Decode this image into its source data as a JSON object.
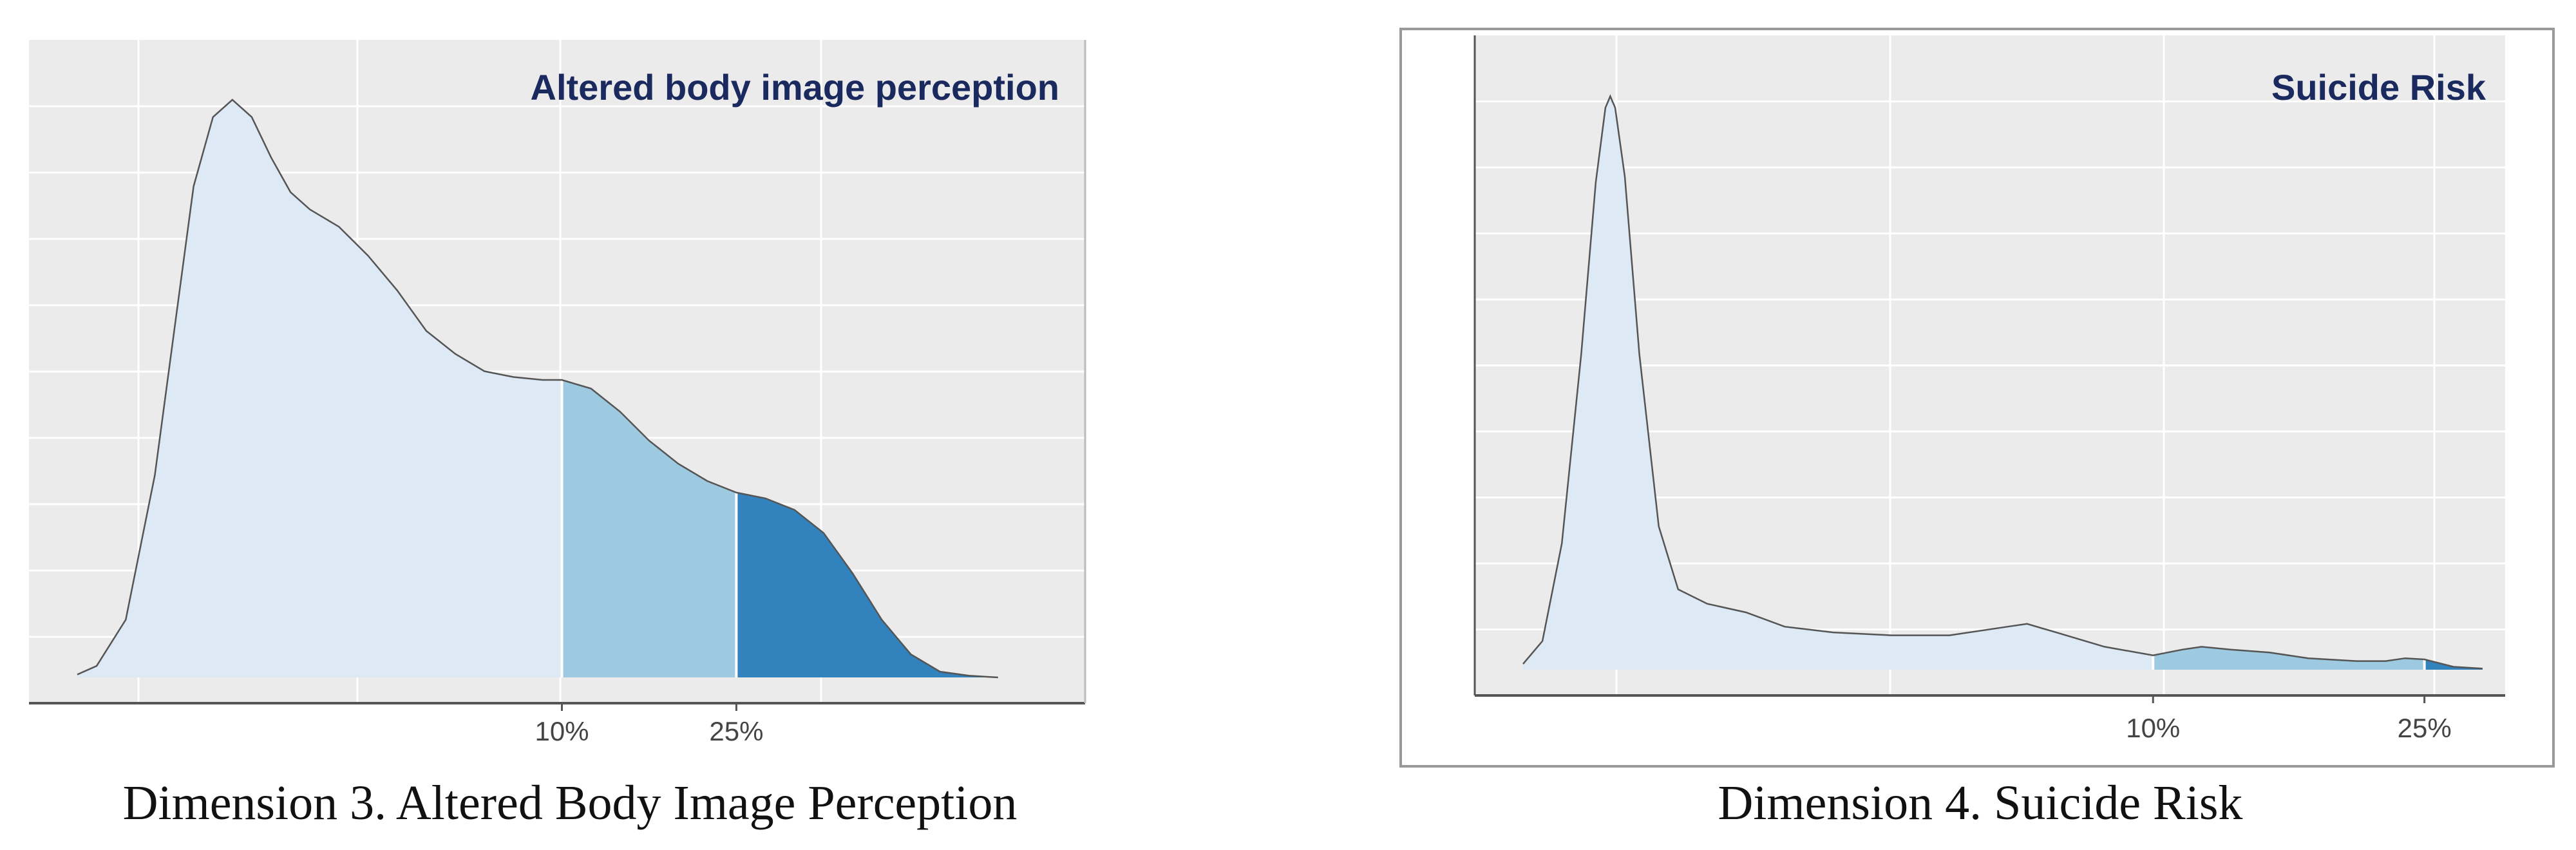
{
  "colors": {
    "panel_background": "#ebebeb",
    "gridline": "#ffffff",
    "title_text": "#1a2a5e",
    "fill_below_10": "#dde9f5",
    "fill_10_to_25": "#9ecae1",
    "fill_above_25": "#3182bd",
    "outline": "#555555"
  },
  "chart_data": [
    {
      "type": "area",
      "title": "Altered body image perception",
      "caption": "Dimension 3. Altered Body Image Perception",
      "xlim": [
        0,
        100
      ],
      "ylim": [
        0,
        1.05
      ],
      "x_ticks": [
        {
          "x": 50,
          "label": "10%"
        },
        {
          "x": 68,
          "label": "25%"
        }
      ],
      "thresholds": [
        50,
        68
      ],
      "density": [
        [
          0,
          0.005
        ],
        [
          2,
          0.02
        ],
        [
          5,
          0.1
        ],
        [
          8,
          0.35
        ],
        [
          10,
          0.6
        ],
        [
          12,
          0.85
        ],
        [
          14,
          0.97
        ],
        [
          16,
          1.0
        ],
        [
          18,
          0.97
        ],
        [
          20,
          0.9
        ],
        [
          22,
          0.84
        ],
        [
          24,
          0.81
        ],
        [
          27,
          0.78
        ],
        [
          30,
          0.73
        ],
        [
          33,
          0.67
        ],
        [
          36,
          0.6
        ],
        [
          39,
          0.56
        ],
        [
          42,
          0.53
        ],
        [
          45,
          0.52
        ],
        [
          48,
          0.515
        ],
        [
          50,
          0.515
        ],
        [
          53,
          0.5
        ],
        [
          56,
          0.46
        ],
        [
          59,
          0.41
        ],
        [
          62,
          0.37
        ],
        [
          65,
          0.34
        ],
        [
          68,
          0.32
        ],
        [
          71,
          0.31
        ],
        [
          74,
          0.29
        ],
        [
          77,
          0.25
        ],
        [
          80,
          0.18
        ],
        [
          83,
          0.1
        ],
        [
          86,
          0.04
        ],
        [
          89,
          0.01
        ],
        [
          92,
          0.003
        ],
        [
          95,
          0.0
        ]
      ]
    },
    {
      "type": "area",
      "title": "Suicide Risk",
      "caption": "Dimension 4. Suicide Risk",
      "xlim": [
        0,
        100
      ],
      "ylim": [
        0,
        1.05
      ],
      "x_ticks": [
        {
          "x": 65,
          "label": "10%"
        },
        {
          "x": 93,
          "label": "25%"
        }
      ],
      "thresholds": [
        65,
        93
      ],
      "density": [
        [
          0,
          0.01
        ],
        [
          2,
          0.05
        ],
        [
          4,
          0.22
        ],
        [
          6,
          0.55
        ],
        [
          7.5,
          0.85
        ],
        [
          8.5,
          0.98
        ],
        [
          9,
          1.0
        ],
        [
          9.5,
          0.98
        ],
        [
          10.5,
          0.86
        ],
        [
          12,
          0.55
        ],
        [
          14,
          0.25
        ],
        [
          16,
          0.14
        ],
        [
          19,
          0.115
        ],
        [
          23,
          0.1
        ],
        [
          27,
          0.075
        ],
        [
          32,
          0.065
        ],
        [
          38,
          0.06
        ],
        [
          44,
          0.06
        ],
        [
          50,
          0.075
        ],
        [
          52,
          0.08
        ],
        [
          55,
          0.065
        ],
        [
          60,
          0.04
        ],
        [
          65,
          0.025
        ],
        [
          68,
          0.035
        ],
        [
          70,
          0.04
        ],
        [
          73,
          0.035
        ],
        [
          77,
          0.03
        ],
        [
          81,
          0.02
        ],
        [
          86,
          0.015
        ],
        [
          89,
          0.015
        ],
        [
          91,
          0.02
        ],
        [
          93,
          0.018
        ],
        [
          96,
          0.005
        ],
        [
          99,
          0.002
        ]
      ]
    }
  ]
}
